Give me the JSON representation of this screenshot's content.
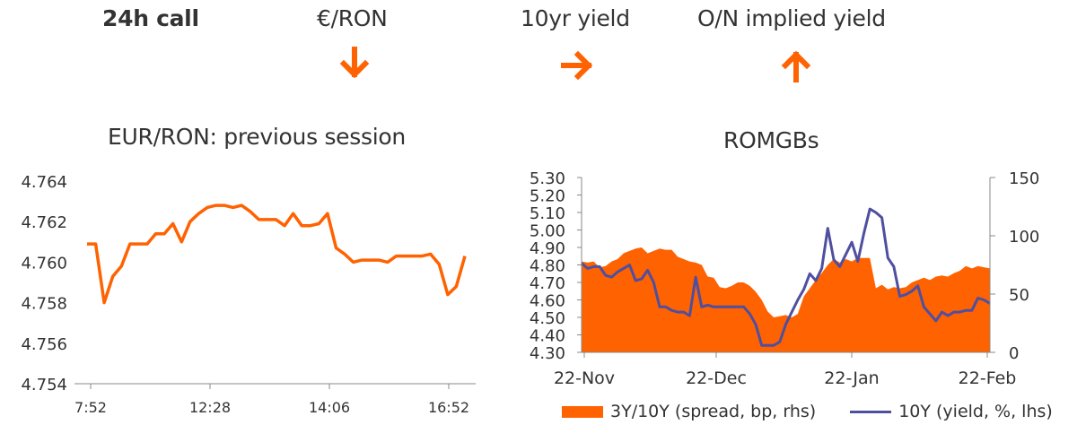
{
  "header": {
    "call_label": "24h call",
    "items": [
      {
        "label": "€/RON",
        "arrow": "down",
        "glyph": "🡇"
      },
      {
        "label": "10yr yield",
        "arrow": "right",
        "glyph": "🡆"
      },
      {
        "label": "O/N implied yield",
        "arrow": "up",
        "glyph": "🡅"
      }
    ]
  },
  "colors": {
    "accent": "#FF6200",
    "line_blue": "#4F4FA0",
    "axis": "#888888",
    "text": "#333333"
  },
  "chart_data": [
    {
      "type": "line",
      "title": "EUR/RON: previous session",
      "x_tick_labels": [
        "7:52",
        "12:28",
        "14:06",
        "16:52"
      ],
      "ylim": [
        4.754,
        4.764
      ],
      "y_ticks": [
        "4.754",
        "4.756",
        "4.758",
        "4.760",
        "4.762",
        "4.764"
      ],
      "series": [
        {
          "values": [
            4.7609,
            4.7609,
            4.758,
            4.7593,
            4.7598,
            4.7609,
            4.7609,
            4.7609,
            4.7614,
            4.7614,
            4.7619,
            4.761,
            4.762,
            4.7624,
            4.7627,
            4.7628,
            4.7628,
            4.7627,
            4.7628,
            4.7625,
            4.7621,
            4.7621,
            4.7621,
            4.7618,
            4.7624,
            4.7618,
            4.7618,
            4.7619,
            4.7624,
            4.7607,
            4.7604,
            4.76,
            4.7601,
            4.7601,
            4.7601,
            4.76,
            4.7603,
            4.7603,
            4.7603,
            4.7603,
            4.7604,
            4.7599,
            4.7584,
            4.7588,
            4.7603
          ]
        }
      ]
    },
    {
      "type": "area",
      "title": "ROMGBs",
      "x_tick_labels": [
        "22-Nov",
        "22-Dec",
        "22-Jan",
        "22-Feb"
      ],
      "ylim": [
        4.3,
        5.3
      ],
      "y_ticks": [
        "4.30",
        "4.40",
        "4.50",
        "4.60",
        "4.70",
        "4.80",
        "4.90",
        "5.00",
        "5.10",
        "5.20",
        "5.30"
      ],
      "y2lim": [
        0,
        150
      ],
      "y2_ticks": [
        "0",
        "50",
        "100",
        "150"
      ],
      "legend_position": "bottom",
      "series": [
        {
          "name": "3Y/10Y (spread, bp, rhs)",
          "type": "area",
          "axis": "right",
          "values": [
            78,
            77,
            78,
            73,
            74,
            78,
            80,
            85,
            87,
            89,
            90,
            85,
            87,
            89,
            88,
            88,
            82,
            80,
            78,
            77,
            75,
            65,
            64,
            56,
            55,
            57,
            60,
            60,
            57,
            52,
            45,
            35,
            30,
            31,
            32,
            30,
            33,
            48,
            55,
            62,
            68,
            75,
            80,
            77,
            80,
            78,
            81,
            81,
            81,
            55,
            58,
            54,
            56,
            55,
            56,
            60,
            62,
            64,
            62,
            65,
            66,
            65,
            68,
            70,
            74,
            72,
            74,
            73,
            72
          ]
        },
        {
          "name": "10Y (yield, %, lhs)",
          "type": "line",
          "axis": "left",
          "values": [
            4.81,
            4.78,
            4.79,
            4.79,
            4.74,
            4.73,
            4.76,
            4.78,
            4.8,
            4.71,
            4.72,
            4.77,
            4.7,
            4.56,
            4.56,
            4.54,
            4.53,
            4.53,
            4.51,
            4.73,
            4.56,
            4.57,
            4.56,
            4.56,
            4.56,
            4.56,
            4.56,
            4.56,
            4.52,
            4.46,
            4.34,
            4.34,
            4.34,
            4.36,
            4.46,
            4.53,
            4.6,
            4.66,
            4.75,
            4.71,
            4.78,
            5.01,
            4.83,
            4.79,
            4.86,
            4.93,
            4.82,
            4.98,
            5.12,
            5.1,
            5.07,
            4.84,
            4.79,
            4.62,
            4.63,
            4.65,
            4.68,
            4.56,
            4.52,
            4.48,
            4.53,
            4.51,
            4.53,
            4.53,
            4.54,
            4.54,
            4.61,
            4.6,
            4.58
          ]
        }
      ]
    }
  ]
}
